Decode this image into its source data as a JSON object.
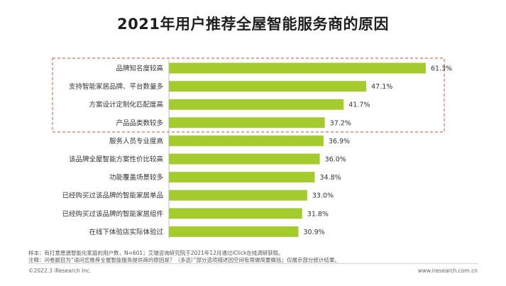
{
  "title": "2021年用户推荐全屋智能服务商的原因",
  "chart_data": {
    "type": "bar",
    "orientation": "horizontal",
    "categories": [
      "品牌知名度较高",
      "支持智能家居品牌、平台数量多",
      "方案设计定制化匹配度高",
      "产品品类数较多",
      "服务人员专业度高",
      "该品牌全屋智能方案性价比较高",
      "功能覆盖场景较多",
      "已经购买过该品牌的智能家居单品",
      "已经购买过该品牌的智能家居组件",
      "在线下体验店实际体验过"
    ],
    "values": [
      61.3,
      47.1,
      41.7,
      37.2,
      36.9,
      36.0,
      34.8,
      33.0,
      31.8,
      30.9
    ],
    "value_labels": [
      "61.3%",
      "47.1%",
      "41.7%",
      "37.2%",
      "36.9%",
      "36.0%",
      "34.8%",
      "33.0%",
      "31.8%",
      "30.9%"
    ],
    "highlighted_count": 4,
    "xlim": [
      0,
      70
    ],
    "bar_color": "#a4cc2e",
    "highlight_border_color": "#e86a5a",
    "grid": false,
    "legend": "none"
  },
  "notes": {
    "sample": "样本：有打意愿遗智能化家庭的用户数，N=601；艾瑞咨询研究院于2021年12月通过iClick在线调研获取。",
    "annotation": "注释：问卷题目为“请问您推荐全屋智能服务提供商的原因是？（多选）”部分选项描述因空间有限做简要概括；仅展示部分统计结果。"
  },
  "footer": {
    "copyright": "©2022.3 iResearch Inc.",
    "website": "www.iresearch.com.cn"
  }
}
